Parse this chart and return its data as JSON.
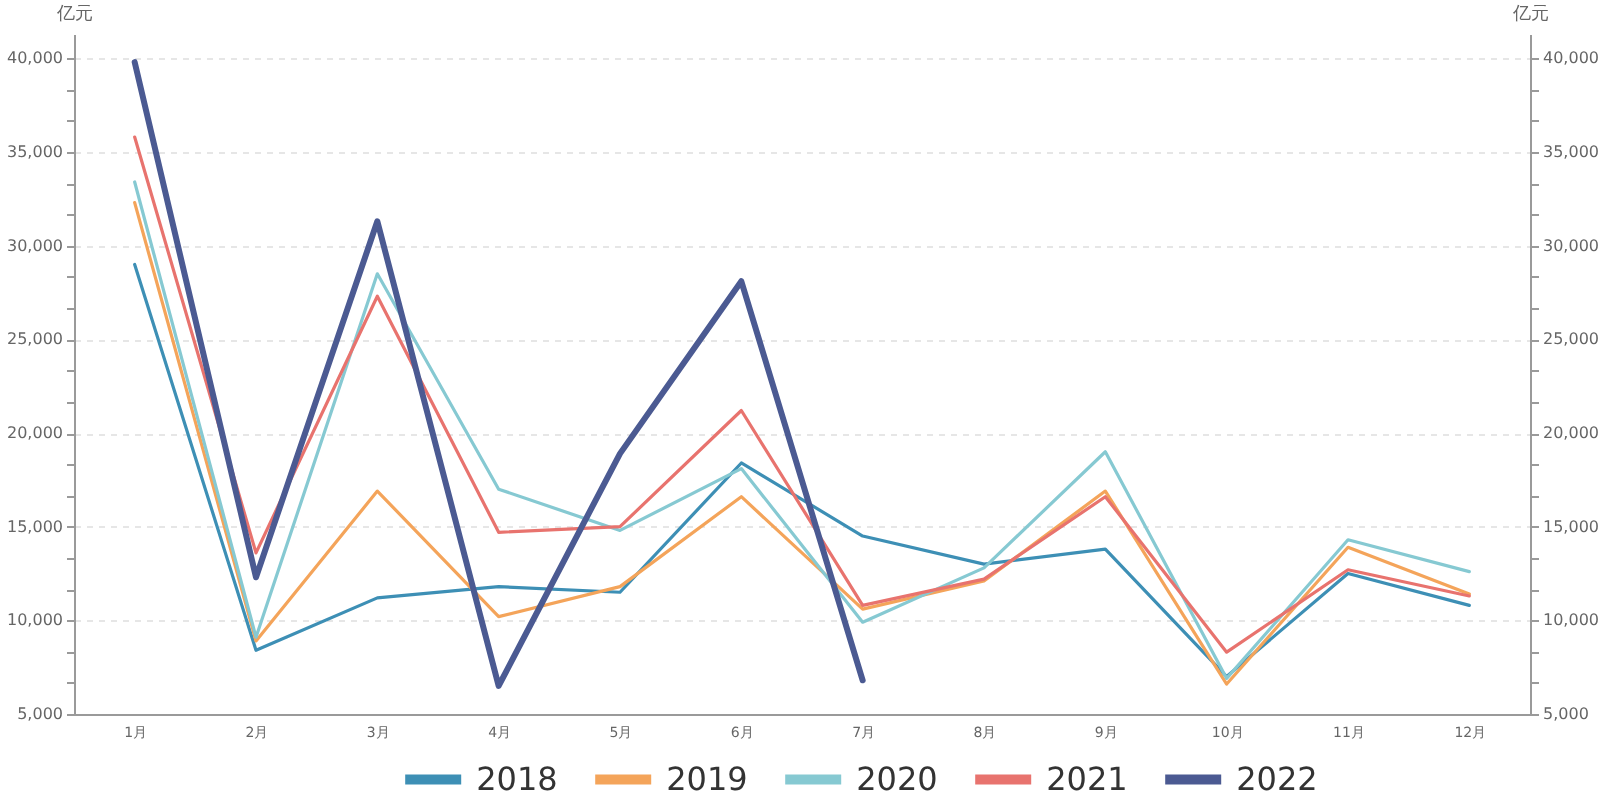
{
  "chart_data": {
    "type": "line",
    "ylabel": "亿元",
    "y2label": "亿元",
    "categories": [
      "1月",
      "2月",
      "3月",
      "4月",
      "5月",
      "6月",
      "7月",
      "8月",
      "9月",
      "10月",
      "11月",
      "12月"
    ],
    "series": [
      {
        "name": "2018",
        "color": "#3d8fb5",
        "values": [
          29000,
          8400,
          11200,
          11800,
          11500,
          18400,
          14500,
          13000,
          13800,
          7000,
          12500,
          10800
        ]
      },
      {
        "name": "2019",
        "color": "#f4a45a",
        "values": [
          32300,
          8900,
          16900,
          10200,
          11800,
          16600,
          10600,
          12100,
          16900,
          6600,
          13900,
          11400
        ]
      },
      {
        "name": "2020",
        "color": "#86c9d2",
        "values": [
          33400,
          9100,
          28500,
          17000,
          14800,
          18100,
          9900,
          12800,
          19000,
          6900,
          14300,
          12600
        ]
      },
      {
        "name": "2021",
        "color": "#e8736e",
        "values": [
          35800,
          13600,
          27300,
          14700,
          15000,
          21200,
          10800,
          12200,
          16600,
          8300,
          12700,
          11300
        ]
      },
      {
        "name": "2022",
        "color": "#4b5a92",
        "values": [
          39800,
          12300,
          31300,
          6500,
          18900,
          28100,
          6800,
          null,
          null,
          null,
          null,
          null
        ]
      }
    ],
    "ylim": [
      5000,
      41300
    ],
    "yticks": [
      {
        "value": 5000,
        "label": "5,000"
      },
      {
        "value": 6667,
        "label": null
      },
      {
        "value": 8333,
        "label": null
      },
      {
        "value": 10000,
        "label": "10,000"
      },
      {
        "value": 11667,
        "label": null
      },
      {
        "value": 13333,
        "label": null
      },
      {
        "value": 15000,
        "label": "15,000"
      },
      {
        "value": 16667,
        "label": null
      },
      {
        "value": 18333,
        "label": null
      },
      {
        "value": 20000,
        "label": "20,000"
      },
      {
        "value": 21667,
        "label": null
      },
      {
        "value": 23333,
        "label": null
      },
      {
        "value": 25000,
        "label": "25,000"
      },
      {
        "value": 26667,
        "label": null
      },
      {
        "value": 28333,
        "label": null
      },
      {
        "value": 30000,
        "label": "30,000"
      },
      {
        "value": 31667,
        "label": null
      },
      {
        "value": 33333,
        "label": null
      },
      {
        "value": 35000,
        "label": "35,000"
      },
      {
        "value": 36667,
        "label": null
      },
      {
        "value": 38333,
        "label": null
      },
      {
        "value": 40000,
        "label": "40,000"
      }
    ],
    "y2lim": [
      5000,
      41300
    ],
    "y2ticks": [
      {
        "value": 5000,
        "label": "5,000"
      },
      {
        "value": 6667,
        "label": null
      },
      {
        "value": 8333,
        "label": null
      },
      {
        "value": 10000,
        "label": "10,000"
      },
      {
        "value": 11667,
        "label": null
      },
      {
        "value": 13333,
        "label": null
      },
      {
        "value": 15000,
        "label": "15,000"
      },
      {
        "value": 16667,
        "label": null
      },
      {
        "value": 18333,
        "label": null
      },
      {
        "value": 20000,
        "label": "20,000"
      },
      {
        "value": 21667,
        "label": null
      },
      {
        "value": 23333,
        "label": null
      },
      {
        "value": 25000,
        "label": "25,000"
      },
      {
        "value": 26667,
        "label": null
      },
      {
        "value": 28333,
        "label": null
      },
      {
        "value": 30000,
        "label": "30,000"
      },
      {
        "value": 31667,
        "label": null
      },
      {
        "value": 33333,
        "label": null
      },
      {
        "value": 35000,
        "label": "35,000"
      },
      {
        "value": 36667,
        "label": null
      },
      {
        "value": 38333,
        "label": null
      },
      {
        "value": 40000,
        "label": "40,000"
      }
    ],
    "grid": "y",
    "legend": "bottom",
    "marker": "none",
    "line_style": "solid"
  }
}
